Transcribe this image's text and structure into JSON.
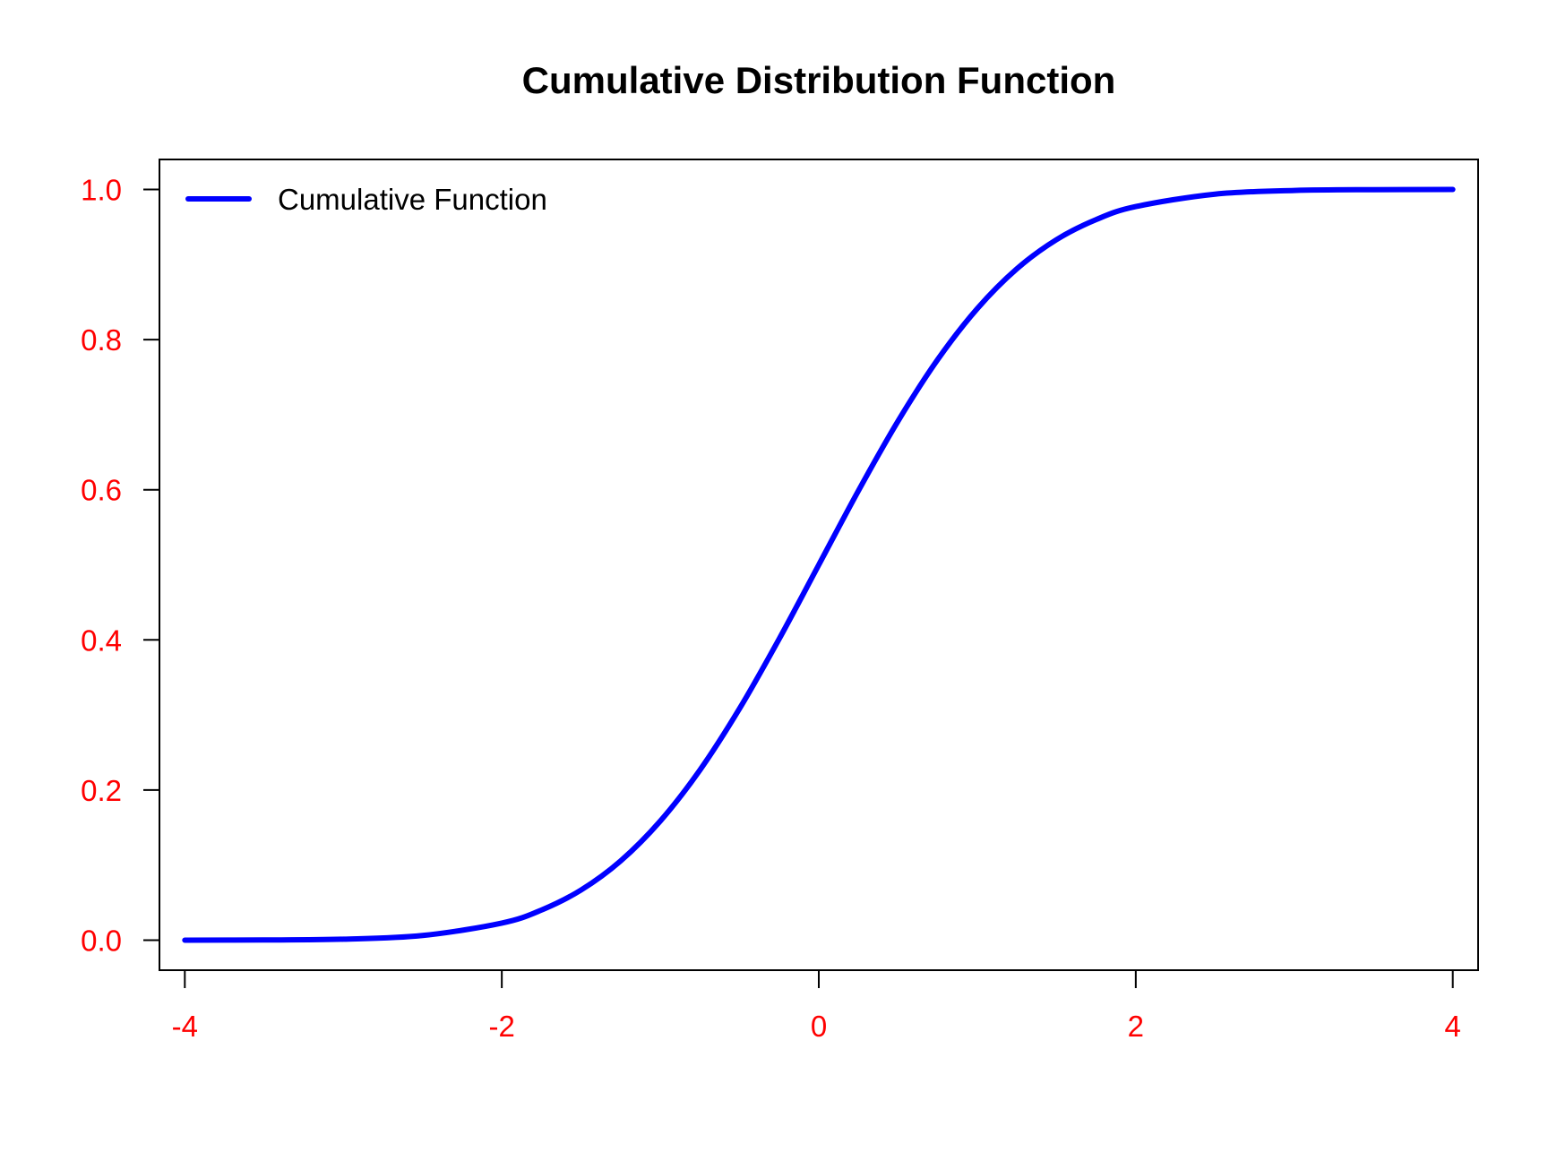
{
  "chart_data": {
    "type": "line",
    "title": "Cumulative Distribution Function",
    "xlabel": "",
    "ylabel": "",
    "xlim": [
      -4.16,
      4.16
    ],
    "ylim": [
      -0.04,
      1.04
    ],
    "x_ticks": [
      "-4",
      "-2",
      "0",
      "2",
      "4"
    ],
    "y_ticks": [
      "0.0",
      "0.2",
      "0.4",
      "0.6",
      "0.8",
      "1.0"
    ],
    "grid": false,
    "legend_position": "top-left",
    "series": [
      {
        "name": "Cumulative Function",
        "color": "#0000ff",
        "x": [
          -4,
          -3.5,
          -3,
          -2.5,
          -2,
          -1.75,
          -1.5,
          -1.25,
          -1,
          -0.75,
          -0.5,
          -0.25,
          0,
          0.25,
          0.5,
          0.75,
          1,
          1.25,
          1.5,
          1.75,
          2,
          2.5,
          3,
          3.5,
          4
        ],
        "y": [
          3e-05,
          0.0002,
          0.0013,
          0.0062,
          0.0228,
          0.0401,
          0.0668,
          0.1056,
          0.1587,
          0.2266,
          0.3085,
          0.4013,
          0.5,
          0.5987,
          0.6915,
          0.7734,
          0.8413,
          0.8944,
          0.9332,
          0.9599,
          0.9772,
          0.9938,
          0.9987,
          0.9998,
          0.99997
        ]
      }
    ]
  },
  "colors": {
    "tick_label": "#ff0000",
    "axis": "#000000",
    "line": "#0000ff"
  }
}
